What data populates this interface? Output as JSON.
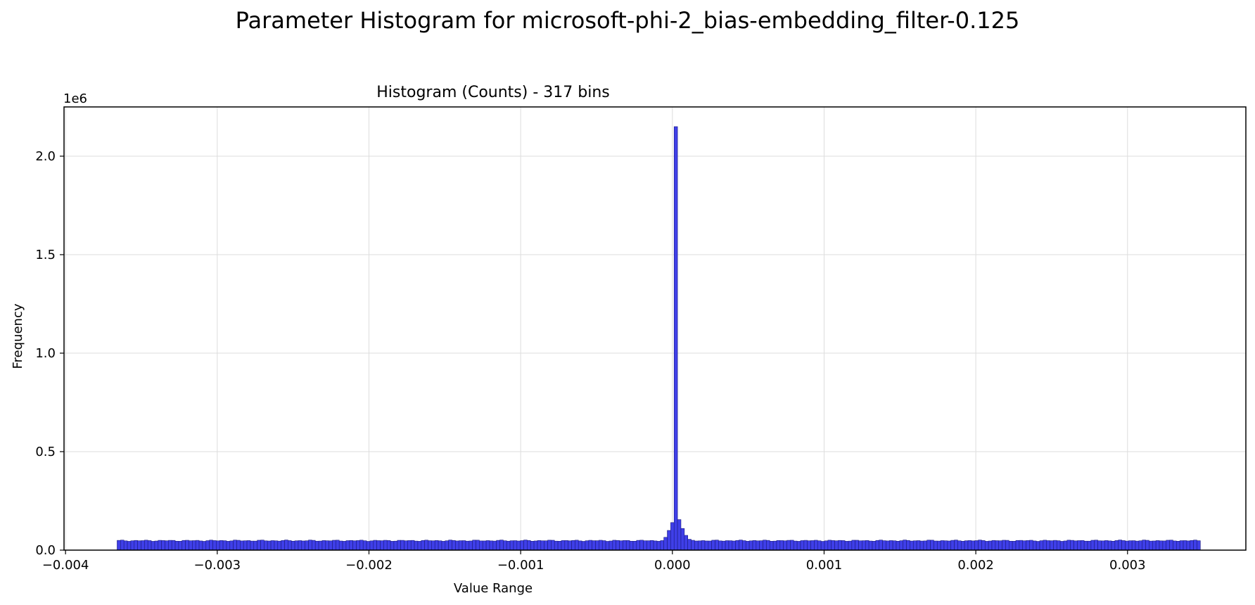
{
  "suptitle": "Parameter Histogram for microsoft-phi-2_bias-embedding_filter-0.125",
  "chart_data": {
    "type": "bar",
    "title": "Histogram (Counts) - 317 bins",
    "xlabel": "Value Range",
    "ylabel": "Frequency",
    "y_offset_label": "1e6",
    "y_scale": 1000000,
    "xlim": [
      -0.00401,
      0.00378
    ],
    "ylim": [
      0,
      2.25
    ],
    "grid": true,
    "bar_color": "#3f3fe8",
    "bar_edge_color": "#1a1a80",
    "x_ticks": [
      {
        "value": -0.004,
        "label": "−0.004"
      },
      {
        "value": -0.003,
        "label": "−0.003"
      },
      {
        "value": -0.002,
        "label": "−0.002"
      },
      {
        "value": -0.001,
        "label": "−0.001"
      },
      {
        "value": 0.0,
        "label": "0.000"
      },
      {
        "value": 0.001,
        "label": "0.001"
      },
      {
        "value": 0.002,
        "label": "0.002"
      },
      {
        "value": 0.003,
        "label": "0.003"
      }
    ],
    "y_ticks": [
      {
        "value": 0.0,
        "label": "0.0"
      },
      {
        "value": 0.5,
        "label": "0.5"
      },
      {
        "value": 1.0,
        "label": "1.0"
      },
      {
        "value": 1.5,
        "label": "1.5"
      },
      {
        "value": 2.0,
        "label": "2.0"
      }
    ],
    "bins": {
      "count": 317,
      "range": [
        -0.00366,
        0.00348
      ],
      "baseline": 0.048,
      "peaks": [
        {
          "x": -4.5e-05,
          "value": 0.065
        },
        {
          "x": -2.3e-05,
          "value": 0.1
        },
        {
          "x": 0.0,
          "value": 0.14
        },
        {
          "x": 2.25e-05,
          "value": 2.15
        },
        {
          "x": 4.5e-05,
          "value": 0.155
        },
        {
          "x": 6.75e-05,
          "value": 0.11
        },
        {
          "x": 9e-05,
          "value": 0.075
        },
        {
          "x": 0.0001125,
          "value": 0.055
        }
      ]
    }
  }
}
